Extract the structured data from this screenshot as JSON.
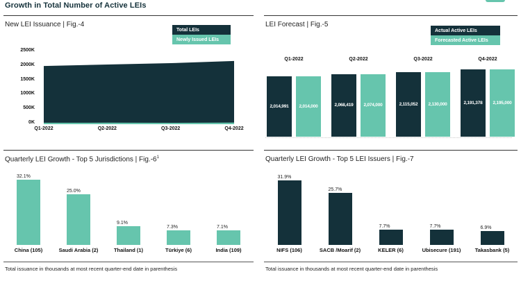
{
  "page": {
    "title": "Growth in Total Number of Active LEIs",
    "accent_teal": "#66c5ad",
    "accent_dark": "#14313a"
  },
  "panels": {
    "issuance": {
      "title": "New LEI Issuance | Fig.-4"
    },
    "forecast": {
      "title": "LEI Forecast | Fig.-5"
    },
    "jurisdictions": {
      "title": "Quarterly LEI Growth - Top 5 Jurisdictions | Fig.-6",
      "title_sup": "1",
      "footnote": "Total issuance in thousands at most recent quarter-end date in parenthesis"
    },
    "issuers": {
      "title": "Quarterly LEI Growth - Top 5 LEI Issuers | Fig.-7",
      "footnote": "Total issuance in thousands at most recent quarter-end date in parenthesis"
    }
  },
  "chart_data": [
    {
      "id": "new-lei-issuance",
      "type": "area",
      "title": "New LEI Issuance | Fig.-4",
      "x": [
        "Q1-2022",
        "Q2-2022",
        "Q3-2022",
        "Q4-2022"
      ],
      "yticks_top_to_bottom": [
        "2500K",
        "2000K",
        "1500K",
        "1000K",
        "500K",
        "0K"
      ],
      "ylim": [
        0,
        2500000
      ],
      "grid": false,
      "legend_position": "top-right",
      "series": [
        {
          "name": "Total LEIs",
          "color": "#14313a",
          "values": [
            2014991,
            2068419,
            2115052,
            2191378
          ]
        },
        {
          "name": "Newly Issued LEIs",
          "color": "#66c5ad",
          "values": [
            50000,
            53000,
            47000,
            56000
          ]
        }
      ]
    },
    {
      "id": "lei-forecast",
      "type": "bar",
      "title": "LEI Forecast | Fig.-5",
      "categories": [
        "Q1-2022",
        "Q2-2022",
        "Q3-2022",
        "Q4-2022"
      ],
      "legend_position": "top-right",
      "value_labels": "inside-white",
      "series": [
        {
          "name": "Actual Active LEIs",
          "color": "#14313a",
          "values": [
            2014991,
            2068419,
            2115052,
            2191378
          ],
          "labels": [
            "2,014,991",
            "2,068,419",
            "2,115,052",
            "2,191,378"
          ]
        },
        {
          "name": "Forecasted Active LEIs",
          "color": "#66c5ad",
          "values": [
            2014000,
            2074000,
            2130000,
            2195000
          ],
          "labels": [
            "2,014,000",
            "2,074,000",
            "2,130,000",
            "2,195,000"
          ]
        }
      ]
    },
    {
      "id": "top5-jurisdictions",
      "type": "bar",
      "title": "Quarterly LEI Growth - Top 5 Jurisdictions | Fig.-6¹",
      "categories": [
        "China (105)",
        "Saudi Arabia (2)",
        "Thailand (1)",
        "Türkiye (6)",
        "India (109)"
      ],
      "values": [
        32.1,
        25.0,
        9.1,
        7.3,
        7.1
      ],
      "labels": [
        "32.1%",
        "25.0%",
        "9.1%",
        "7.3%",
        "7.1%"
      ],
      "unit": "%",
      "bar_color": "#66c5ad"
    },
    {
      "id": "top5-issuers",
      "type": "bar",
      "title": "Quarterly LEI Growth - Top 5 LEI Issuers | Fig.-7",
      "categories": [
        "NIFS (106)",
        "SACB /Moarif (2)",
        "KELER (6)",
        "Ubisecure (191)",
        "Takasbank (5)"
      ],
      "values": [
        31.9,
        25.7,
        7.7,
        7.7,
        6.9
      ],
      "labels": [
        "31.9%",
        "25.7%",
        "7.7%",
        "7.7%",
        "6.9%"
      ],
      "unit": "%",
      "bar_color": "#14313a"
    }
  ]
}
